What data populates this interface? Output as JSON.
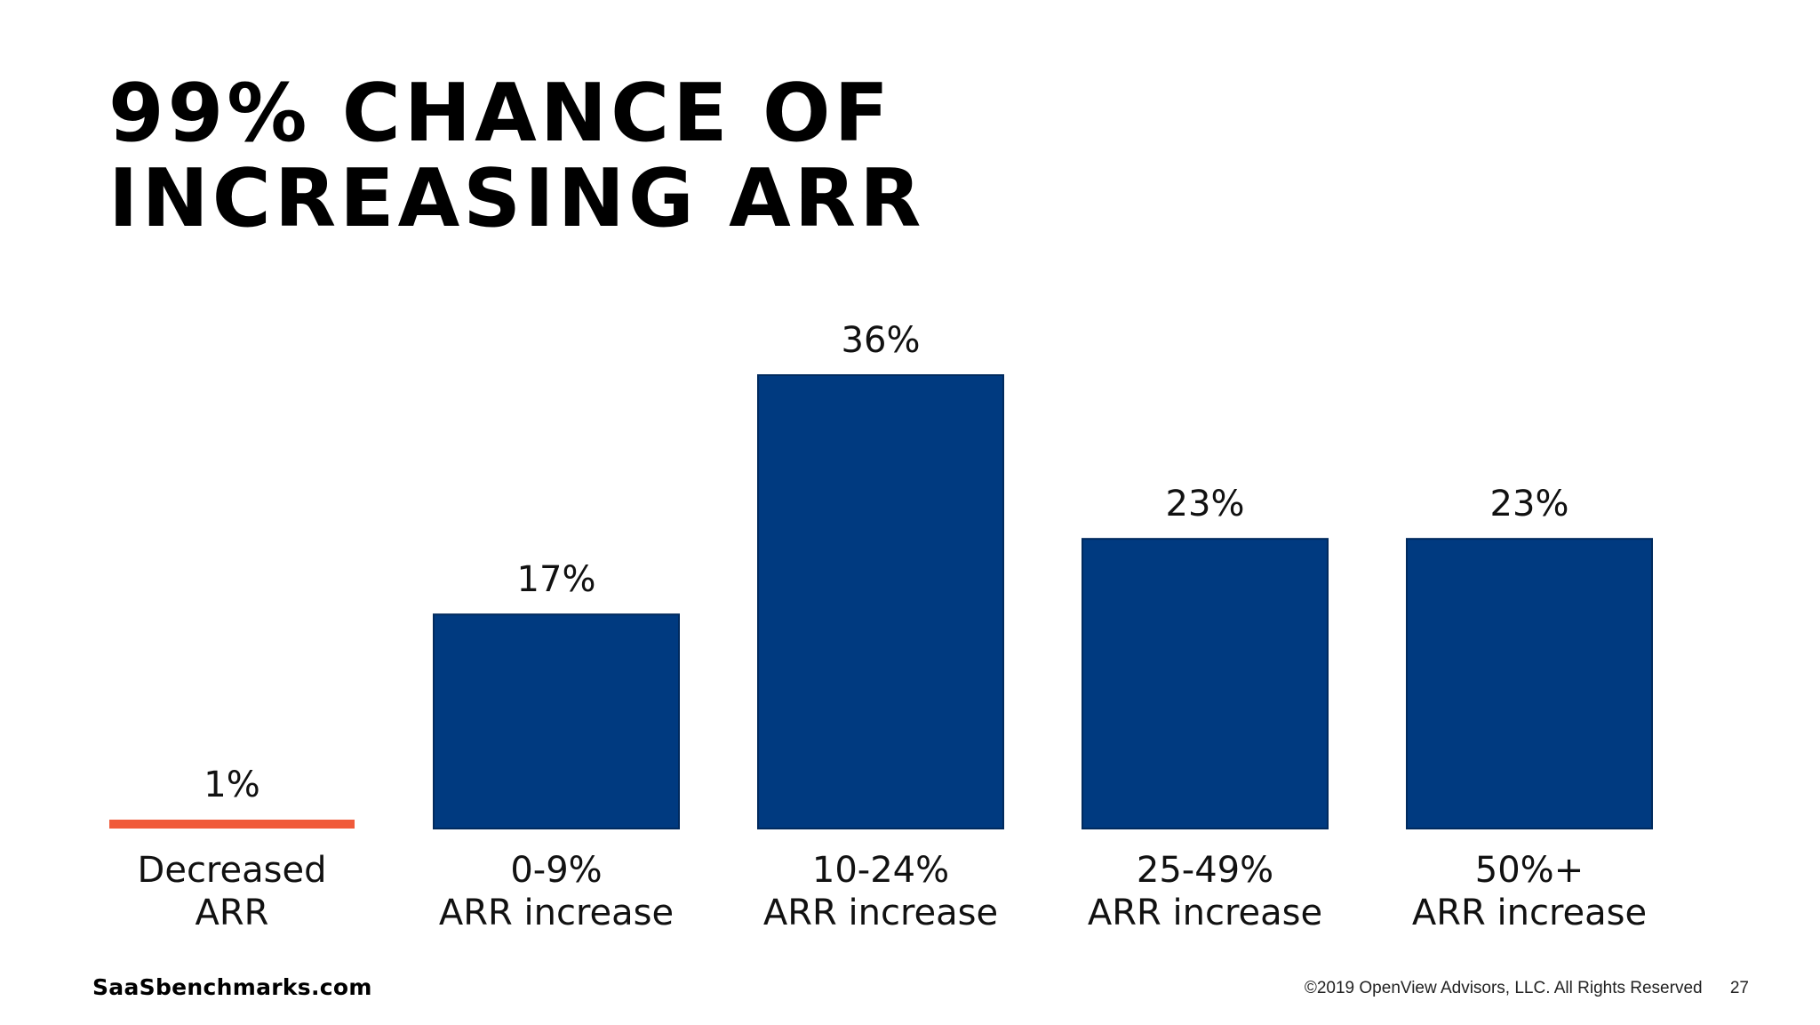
{
  "title_lines": [
    "99% CHANCE OF",
    "INCREASING ARR"
  ],
  "footer": {
    "site": "SaaSbenchmarks.com",
    "copyright": "©2019 OpenView Advisors, LLC. All Rights Reserved",
    "page_number": "27"
  },
  "colors": {
    "bar_primary": "#003a80",
    "bar_highlight": "#f05a3a"
  },
  "chart_data": {
    "type": "bar",
    "title": "99% CHANCE OF INCREASING ARR",
    "categories": [
      [
        "Decreased",
        "ARR"
      ],
      [
        "0-9%",
        "ARR increase"
      ],
      [
        "10-24%",
        "ARR increase"
      ],
      [
        "25-49%",
        "ARR increase"
      ],
      [
        "50%+",
        "ARR increase"
      ]
    ],
    "values": [
      1,
      17,
      36,
      23,
      23
    ],
    "data_labels": [
      "1%",
      "17%",
      "36%",
      "23%",
      "23%"
    ],
    "ylim": [
      0,
      36
    ],
    "grid": false,
    "legend": "none"
  }
}
